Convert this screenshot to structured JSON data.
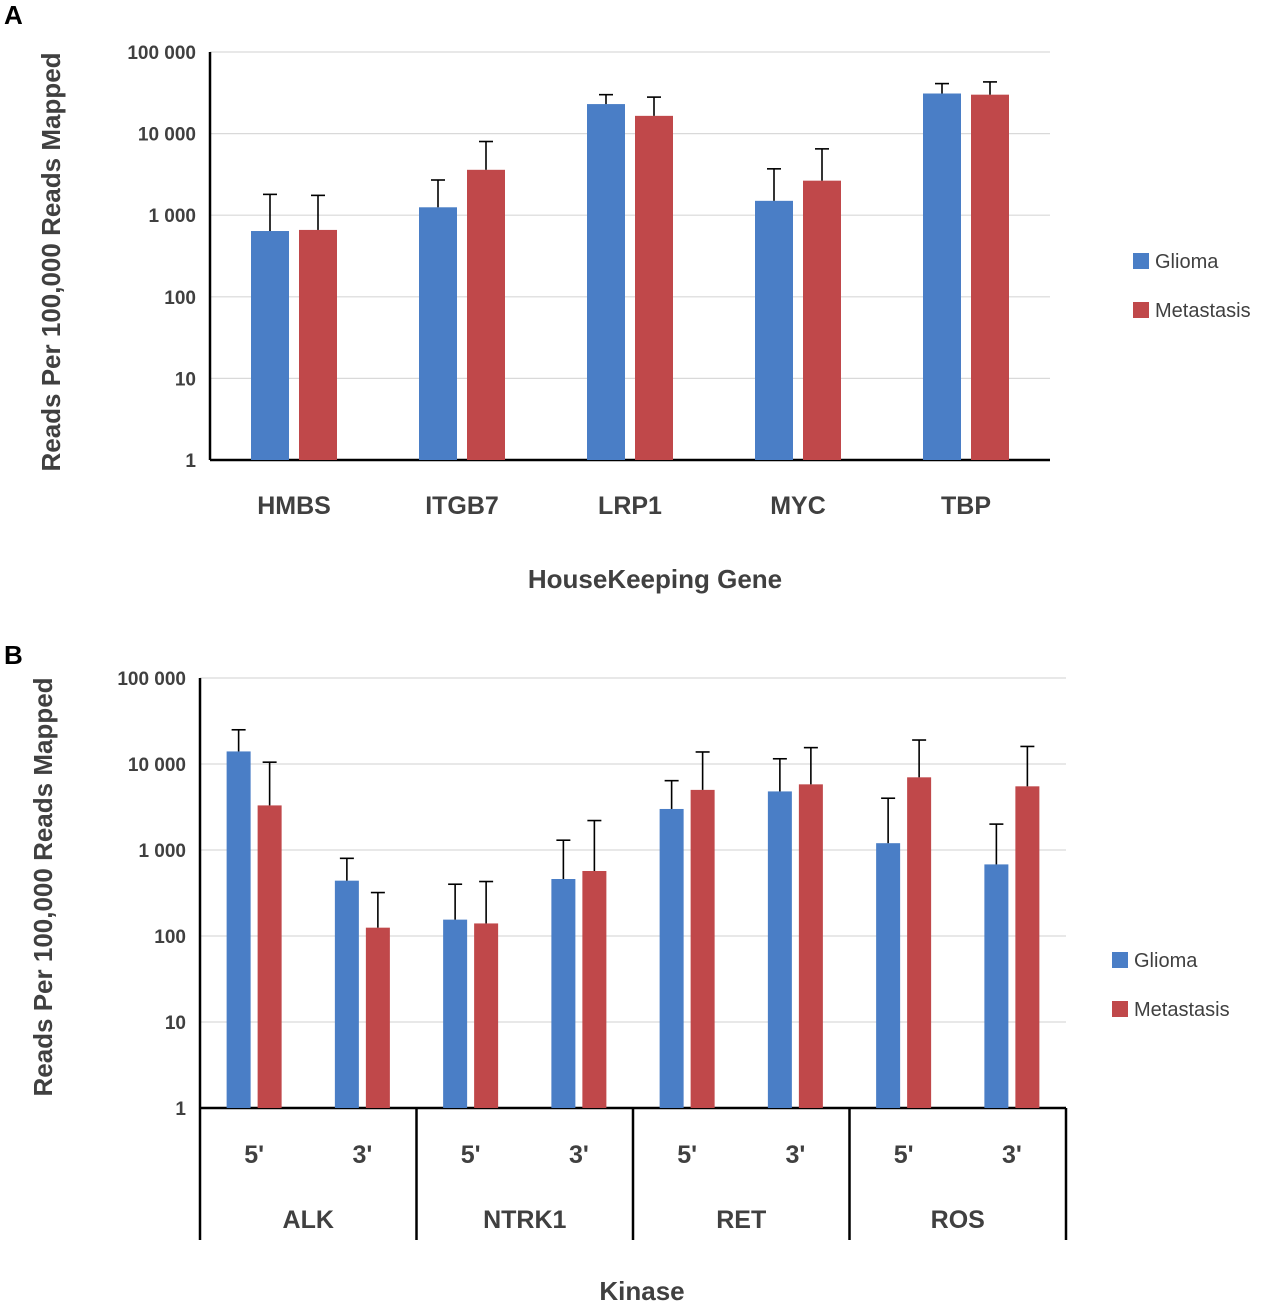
{
  "figure": {
    "colors": {
      "glioma": "#4A7EC6",
      "metastasis": "#C0484A",
      "grid": "#D9D9D9",
      "axis": "#000000",
      "text": "#404040"
    }
  },
  "chart_data": [
    {
      "panel_label": "A",
      "type": "bar",
      "scale": "log",
      "ylim": [
        1,
        100000
      ],
      "yticks": [
        1,
        10,
        100,
        1000,
        10000,
        100000
      ],
      "ytick_labels": [
        "1",
        "10",
        "100",
        "1 000",
        "10 000",
        "100 000"
      ],
      "ylabel": "Reads Per 100,000 Reads Mapped",
      "xlabel": "HouseKeeping Gene",
      "categories": [
        "HMBS",
        "ITGB7",
        "LRP1",
        "MYC",
        "TBP"
      ],
      "series": [
        {
          "name": "Glioma",
          "color": "#4A7EC6",
          "values": [
            640,
            1250,
            23000,
            1500,
            31000
          ],
          "errors_upper": [
            1800,
            2700,
            30000,
            3700,
            41000
          ]
        },
        {
          "name": "Metastasis",
          "color": "#C0484A",
          "values": [
            660,
            3600,
            16500,
            2650,
            30000
          ],
          "errors_upper": [
            1750,
            8000,
            28000,
            6500,
            43000
          ]
        }
      ],
      "legend": {
        "position": "right",
        "entries": [
          "Glioma",
          "Metastasis"
        ]
      },
      "grid": true
    },
    {
      "panel_label": "B",
      "type": "bar",
      "scale": "log",
      "ylim": [
        1,
        100000
      ],
      "yticks": [
        1,
        10,
        100,
        1000,
        10000,
        100000
      ],
      "ytick_labels": [
        "1",
        "10",
        "100",
        "1 000",
        "10 000",
        "100 000"
      ],
      "ylabel": "Reads Per 100,000 Reads Mapped",
      "xlabel": "Kinase",
      "groups": [
        "ALK",
        "NTRK1",
        "RET",
        "ROS"
      ],
      "subcategories": [
        "5'",
        "3'"
      ],
      "series": [
        {
          "name": "Glioma",
          "color": "#4A7EC6",
          "values": [
            14000,
            440,
            155,
            460,
            3000,
            4800,
            1200,
            680
          ],
          "errors_upper": [
            25000,
            800,
            400,
            1300,
            6400,
            11500,
            4000,
            2000
          ]
        },
        {
          "name": "Metastasis",
          "color": "#C0484A",
          "values": [
            3300,
            125,
            140,
            570,
            5000,
            5800,
            7000,
            5500
          ],
          "errors_upper": [
            10500,
            320,
            430,
            2200,
            13800,
            15500,
            19000,
            16000
          ]
        }
      ],
      "legend": {
        "position": "right",
        "entries": [
          "Glioma",
          "Metastasis"
        ]
      },
      "grid": true
    }
  ]
}
